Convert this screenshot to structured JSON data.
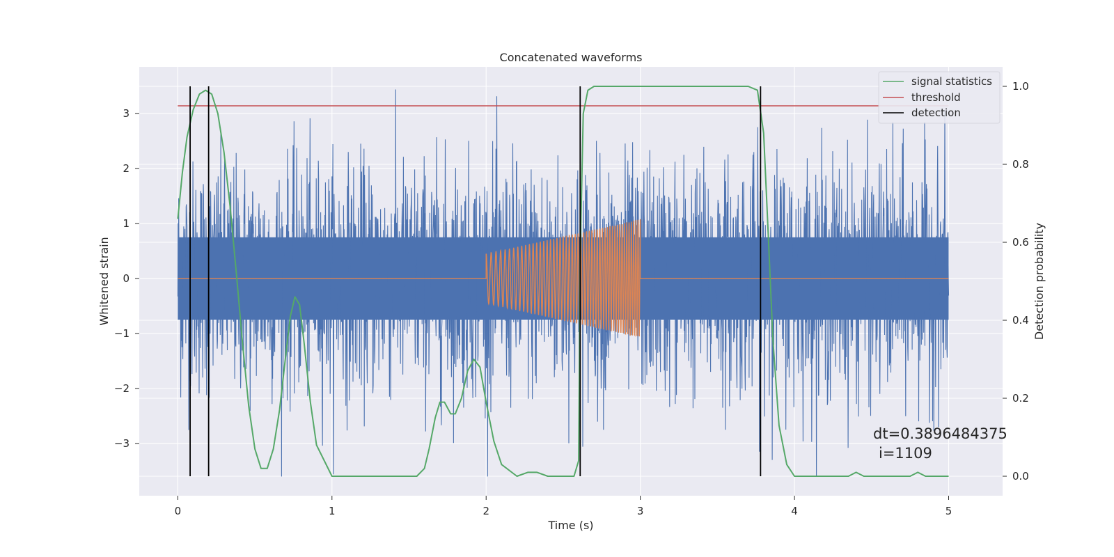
{
  "chart_data": {
    "type": "line",
    "title": "Concatenated waveforms",
    "xlabel": "Time (s)",
    "ylabel": "Whitened strain",
    "ylabel_right": "Detection probability",
    "xlim": [
      -0.25,
      5.35
    ],
    "ylim": [
      -3.95,
      3.85
    ],
    "ylim_right": [
      -0.05,
      1.05
    ],
    "xticks": [
      0,
      1,
      2,
      3,
      4,
      5
    ],
    "yticks": [
      -3,
      -2,
      -1,
      0,
      1,
      2,
      3
    ],
    "yticks_right": [
      0.0,
      0.2,
      0.4,
      0.6,
      0.8,
      1.0
    ],
    "xtick_labels": [
      "0",
      "1",
      "2",
      "3",
      "4",
      "5"
    ],
    "ytick_labels": [
      "−3",
      "−2",
      "−1",
      "0",
      "1",
      "2",
      "3"
    ],
    "ytick_right_labels": [
      "0.0",
      "0.2",
      "0.4",
      "0.6",
      "0.8",
      "1.0"
    ],
    "grid": true,
    "legend_position": "top-right",
    "colors": {
      "strain": "#4c72b0",
      "injected": "#dd8452",
      "signal_statistics": "#55a868",
      "threshold": "#c44e52",
      "detection": "#000000",
      "background": "#eaeaf2"
    },
    "series": [
      {
        "name": "",
        "axis": "left",
        "description_kind": "noise",
        "x_range": [
          0,
          5
        ],
        "envelope_peaks": [
          3.5,
          -3.6
        ],
        "core_band": [
          -0.75,
          0.75
        ]
      },
      {
        "name": "",
        "axis": "left",
        "description_kind": "chirp",
        "x_range": [
          2.0,
          3.0
        ],
        "amplitude_start": 0.45,
        "amplitude_end": 1.08,
        "cycles": 50,
        "baseline": 0
      },
      {
        "name": "signal statistics",
        "axis": "right",
        "x": [
          0.0,
          0.03,
          0.06,
          0.1,
          0.14,
          0.18,
          0.22,
          0.26,
          0.3,
          0.34,
          0.38,
          0.42,
          0.46,
          0.5,
          0.54,
          0.58,
          0.62,
          0.66,
          0.7,
          0.73,
          0.76,
          0.79,
          0.82,
          0.86,
          0.9,
          1.0,
          1.2,
          1.4,
          1.55,
          1.6,
          1.63,
          1.67,
          1.7,
          1.73,
          1.77,
          1.8,
          1.84,
          1.88,
          1.92,
          1.96,
          2.0,
          2.05,
          2.1,
          2.2,
          2.27,
          2.33,
          2.4,
          2.5,
          2.57,
          2.6,
          2.61,
          2.63,
          2.66,
          2.7,
          3.0,
          3.5,
          3.7,
          3.76,
          3.8,
          3.83,
          3.86,
          3.9,
          3.95,
          4.0,
          4.2,
          4.35,
          4.4,
          4.45,
          4.6,
          4.75,
          4.8,
          4.85,
          5.0
        ],
        "y": [
          0.66,
          0.78,
          0.87,
          0.94,
          0.98,
          0.99,
          0.98,
          0.93,
          0.83,
          0.69,
          0.52,
          0.34,
          0.18,
          0.07,
          0.02,
          0.02,
          0.07,
          0.17,
          0.31,
          0.41,
          0.46,
          0.44,
          0.34,
          0.19,
          0.08,
          0.0,
          0.0,
          0.0,
          0.0,
          0.02,
          0.07,
          0.15,
          0.19,
          0.19,
          0.16,
          0.16,
          0.2,
          0.27,
          0.3,
          0.28,
          0.19,
          0.09,
          0.03,
          0.0,
          0.01,
          0.01,
          0.0,
          0.0,
          0.0,
          0.04,
          0.56,
          0.93,
          0.99,
          1.0,
          1.0,
          1.0,
          1.0,
          0.99,
          0.88,
          0.62,
          0.35,
          0.13,
          0.03,
          0.0,
          0.0,
          0.0,
          0.01,
          0.0,
          0.0,
          0.0,
          0.01,
          0.0,
          0.0
        ]
      },
      {
        "name": "threshold",
        "axis": "right",
        "x": [
          0,
          5
        ],
        "y": [
          0.95,
          0.95
        ]
      },
      {
        "name": "detection",
        "axis": "right",
        "type": "vlines",
        "x": [
          0.08,
          0.2,
          2.61,
          3.78
        ],
        "ymin": 0.0,
        "ymax": 1.0
      }
    ],
    "annotation": {
      "line1": "dt=0.3896484375",
      "line2": "i=1109"
    }
  }
}
